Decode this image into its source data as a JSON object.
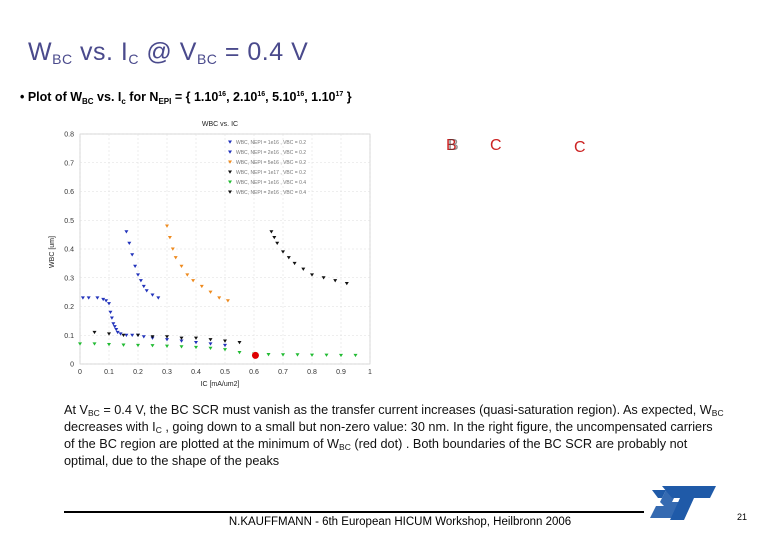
{
  "slide": {
    "title": {
      "main": "W",
      "sub1": "BC",
      "mid": " vs. I",
      "sub2": "C",
      "mid2": " @ V",
      "sub3": "BC",
      "end": " = 0.4 V"
    },
    "bullet": {
      "t1": "• Plot of  W",
      "s1": "BC",
      "t2": " vs.  I",
      "s2": "c",
      "t3": " for N",
      "s3": "EPI",
      "t4": " = { 1.10",
      "e1": "16",
      "t5": ", 2.10",
      "e2": "16",
      "t6": ", 5.10",
      "e3": "16",
      "t7": ", 1.10",
      "e4": "17",
      "t8": " }"
    },
    "annotations": {
      "bb": "B",
      "bb_ghost": "B",
      "c1": "C",
      "c2": "C"
    },
    "caption": {
      "p1": "At V",
      "s1": "BC",
      "p2": " = 0.4 V, the BC SCR must vanish as the transfer current increases (quasi-saturation region). As expected, W",
      "s2": "BC",
      "p3": " decreases with I",
      "s3": "C",
      "p4": " , going down to a small but non-zero value: 30 nm. In the right figure, the uncompensated carriers of the BC region are plotted at the minimum of W",
      "s4": "BC",
      "p5": " (red dot) . Both boundaries of the  BC SCR are probably not optimal, due to the shape of the peaks"
    },
    "footer": "N.KAUFFMANN - 6th European HICUM Workshop, Heilbronn 2006",
    "page_number": "21",
    "logo_icon": "st-logo-icon",
    "colors": {
      "title": "#4a4a8c",
      "series1": "#2233bb",
      "series2": "#ee8a1e",
      "series3": "#111111",
      "series4": "#22bb33",
      "min_dot": "#dd0000"
    }
  },
  "chart_data": {
    "type": "scatter",
    "title": "WBC vs. IC",
    "xlabel": "IC  [mA/um2]",
    "ylabel": "WBC  [um]",
    "xlim": [
      0,
      1
    ],
    "ylim": [
      0,
      0.8
    ],
    "xticks": [
      "0",
      "0.1",
      "0.2",
      "0.3",
      "0.4",
      "0.5",
      "0.6",
      "0.7",
      "0.8",
      "0.9",
      "1"
    ],
    "yticks": [
      "0",
      "0.1",
      "0.2",
      "0.3",
      "0.4",
      "0.5",
      "0.6",
      "0.7",
      "0.8"
    ],
    "legend_position": "top-right",
    "series": [
      {
        "name": "WBC, NEPI = 1e16 , VBC = 0.2",
        "color": "#2233bb",
        "points": [
          [
            0.01,
            0.23
          ],
          [
            0.03,
            0.23
          ],
          [
            0.06,
            0.23
          ],
          [
            0.08,
            0.225
          ],
          [
            0.09,
            0.22
          ],
          [
            0.1,
            0.21
          ],
          [
            0.105,
            0.18
          ],
          [
            0.11,
            0.16
          ],
          [
            0.115,
            0.14
          ],
          [
            0.12,
            0.13
          ],
          [
            0.125,
            0.12
          ],
          [
            0.13,
            0.11
          ],
          [
            0.14,
            0.105
          ],
          [
            0.16,
            0.1
          ],
          [
            0.18,
            0.1
          ],
          [
            0.2,
            0.1
          ],
          [
            0.22,
            0.095
          ],
          [
            0.25,
            0.09
          ],
          [
            0.3,
            0.085
          ],
          [
            0.35,
            0.08
          ],
          [
            0.4,
            0.075
          ],
          [
            0.45,
            0.07
          ],
          [
            0.5,
            0.065
          ]
        ]
      },
      {
        "name": "WBC, NEPI = 2e16 , VBC = 0.2",
        "color": "#2233bb",
        "points": [
          [
            0.16,
            0.46
          ],
          [
            0.17,
            0.42
          ],
          [
            0.18,
            0.38
          ],
          [
            0.19,
            0.34
          ],
          [
            0.2,
            0.31
          ],
          [
            0.21,
            0.29
          ],
          [
            0.22,
            0.27
          ],
          [
            0.23,
            0.255
          ],
          [
            0.25,
            0.24
          ],
          [
            0.27,
            0.23
          ]
        ]
      },
      {
        "name": "WBC, NEPI = 5e16 , VBC = 0.2",
        "color": "#ee8a1e",
        "points": [
          [
            0.3,
            0.48
          ],
          [
            0.31,
            0.44
          ],
          [
            0.32,
            0.4
          ],
          [
            0.33,
            0.37
          ],
          [
            0.35,
            0.34
          ],
          [
            0.37,
            0.31
          ],
          [
            0.39,
            0.29
          ],
          [
            0.42,
            0.27
          ],
          [
            0.45,
            0.25
          ],
          [
            0.48,
            0.23
          ],
          [
            0.51,
            0.22
          ]
        ]
      },
      {
        "name": "WBC, NEPI = 1e17 , VBC = 0.2",
        "color": "#111111",
        "points": [
          [
            0.66,
            0.46
          ],
          [
            0.67,
            0.44
          ],
          [
            0.68,
            0.42
          ],
          [
            0.7,
            0.39
          ],
          [
            0.72,
            0.37
          ],
          [
            0.74,
            0.35
          ],
          [
            0.77,
            0.33
          ],
          [
            0.8,
            0.31
          ],
          [
            0.84,
            0.3
          ],
          [
            0.88,
            0.29
          ],
          [
            0.92,
            0.28
          ]
        ]
      },
      {
        "name": "WBC, NEPI = 1e16 , VBC = 0.4",
        "color": "#22bb33",
        "points": [
          [
            0.0,
            0.07
          ],
          [
            0.05,
            0.07
          ],
          [
            0.1,
            0.068
          ],
          [
            0.15,
            0.066
          ],
          [
            0.2,
            0.065
          ],
          [
            0.25,
            0.064
          ],
          [
            0.3,
            0.062
          ],
          [
            0.35,
            0.06
          ],
          [
            0.4,
            0.058
          ],
          [
            0.45,
            0.055
          ],
          [
            0.5,
            0.05
          ],
          [
            0.55,
            0.04
          ],
          [
            0.6,
            0.035
          ],
          [
            0.65,
            0.033
          ],
          [
            0.7,
            0.032
          ],
          [
            0.75,
            0.032
          ],
          [
            0.8,
            0.031
          ],
          [
            0.85,
            0.031
          ],
          [
            0.9,
            0.03
          ],
          [
            0.95,
            0.03
          ]
        ]
      },
      {
        "name": "WBC, NEPI = 2e16 , VBC = 0.4",
        "color": "#111111",
        "points": [
          [
            0.05,
            0.11
          ],
          [
            0.1,
            0.105
          ],
          [
            0.15,
            0.1
          ],
          [
            0.2,
            0.1
          ],
          [
            0.25,
            0.095
          ],
          [
            0.3,
            0.095
          ],
          [
            0.35,
            0.09
          ],
          [
            0.4,
            0.09
          ],
          [
            0.45,
            0.085
          ],
          [
            0.5,
            0.08
          ],
          [
            0.55,
            0.075
          ]
        ]
      },
      {
        "name": "min WBC",
        "color": "#dd0000",
        "points": [
          [
            0.605,
            0.03
          ]
        ]
      }
    ]
  }
}
